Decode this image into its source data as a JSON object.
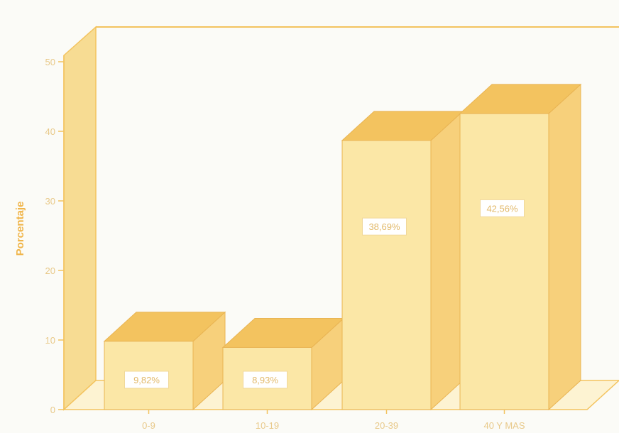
{
  "chart_data": {
    "type": "bar",
    "categories": [
      "0-9",
      "10-19",
      "20-39",
      "40 Y MAS"
    ],
    "values": [
      9.82,
      8.93,
      38.69,
      42.56
    ],
    "data_labels": [
      "9,82%",
      "8,93%",
      "38,69%",
      "42,56%"
    ],
    "ylabel": "Porcentaje",
    "ylim": [
      0,
      55
    ],
    "yticks": [
      0,
      10,
      20,
      30,
      40,
      50
    ],
    "ytick_labels": [
      "0",
      "10",
      "20",
      "30",
      "40",
      "50"
    ],
    "grid": false,
    "legend": "none",
    "colors": {
      "bar_front": "#fbe7a6",
      "bar_top": "#f3c35f",
      "bar_side": "#f7d07b",
      "frame": "#f3c35f",
      "wall": "#f7dc93"
    }
  }
}
